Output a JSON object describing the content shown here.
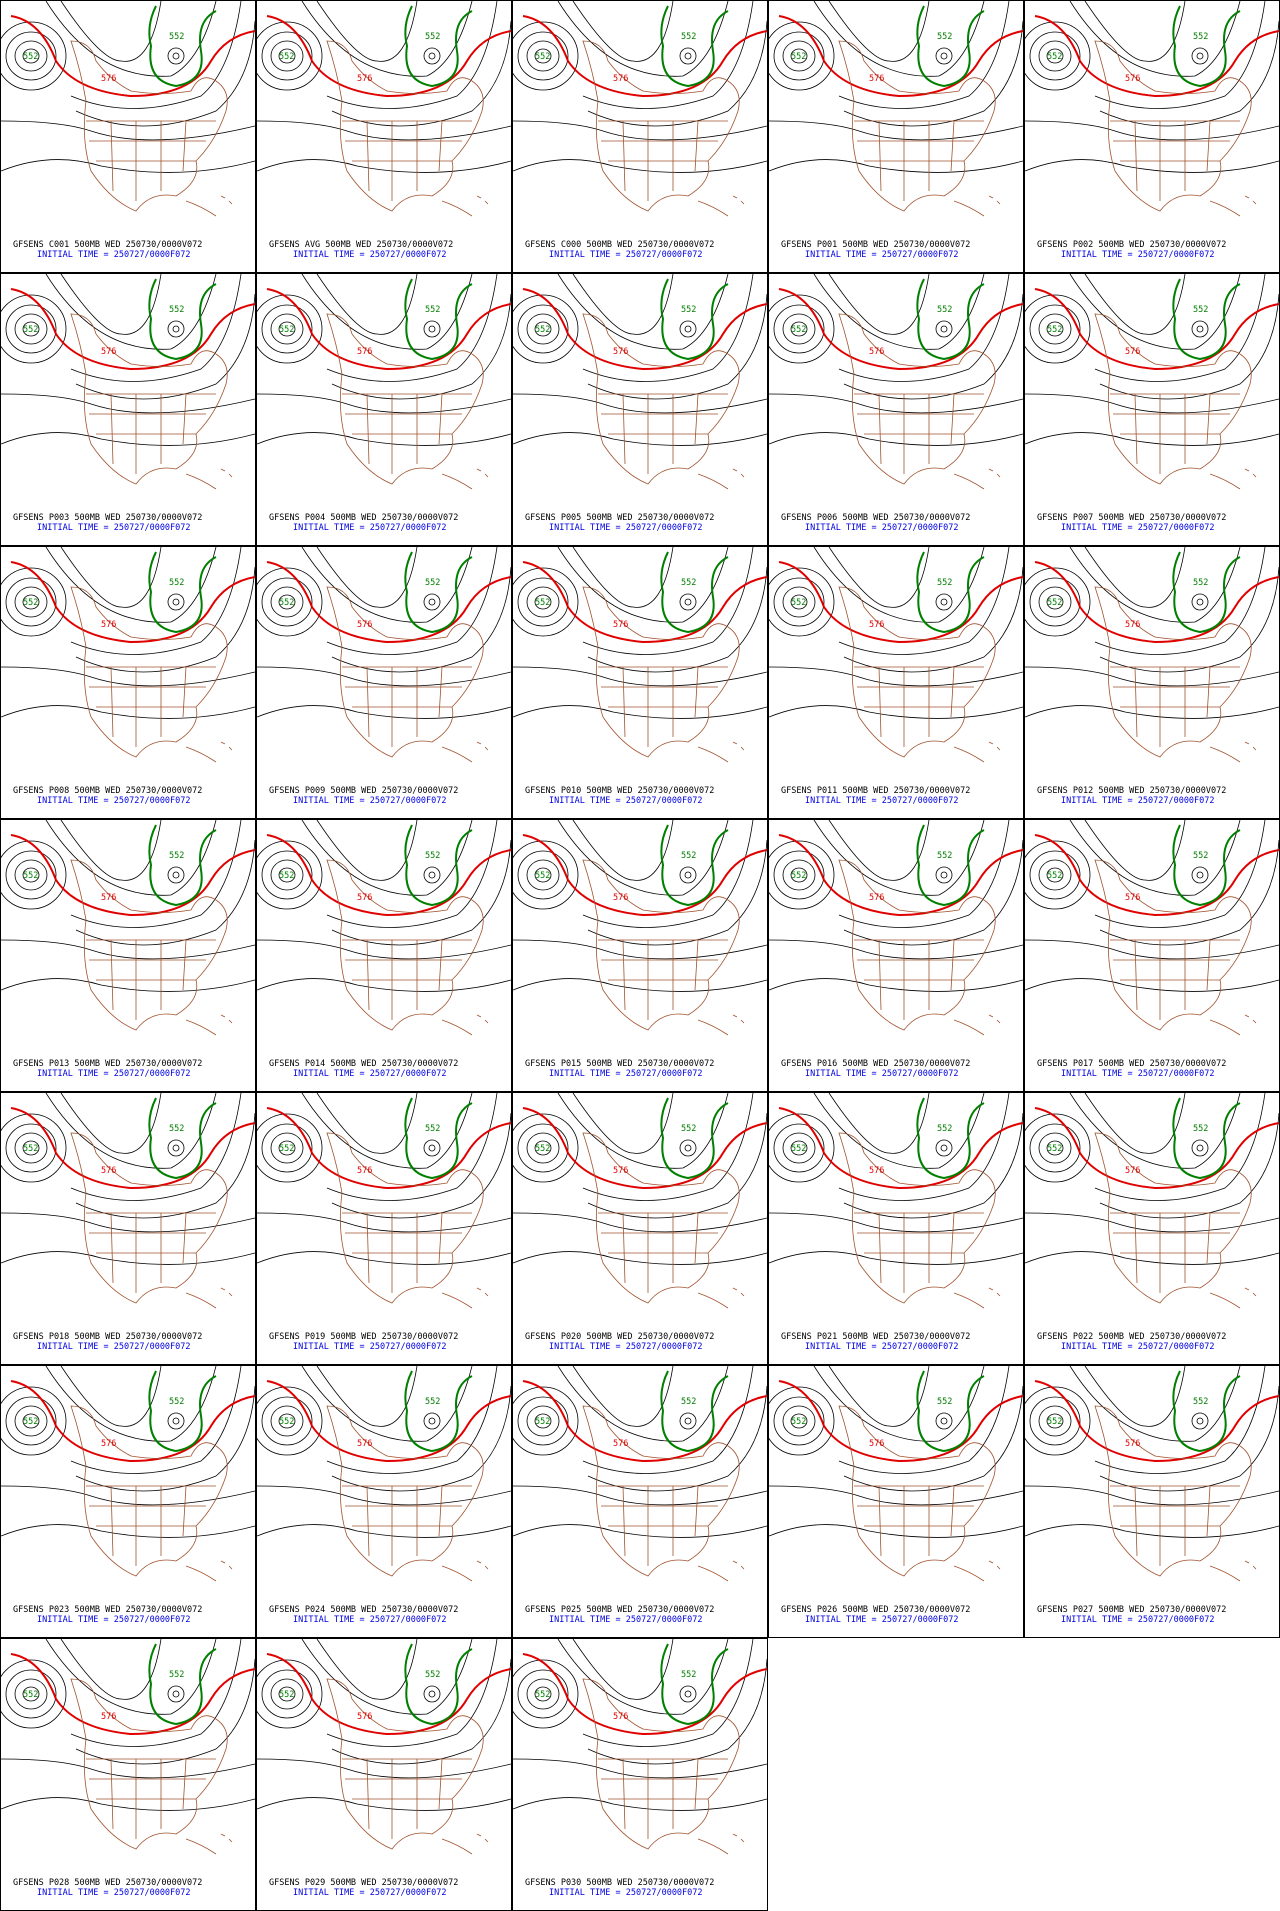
{
  "contour_labels": {
    "green": "552",
    "red": "576"
  },
  "panels": [
    {
      "title": "GFSENS C001 500MB WED 250730/0000V072",
      "subtitle": "INITIAL TIME = 250727/0000F072"
    },
    {
      "title": "GFSENS AVG 500MB WED 250730/0000V072",
      "subtitle": "INITIAL TIME = 250727/0000F072"
    },
    {
      "title": "GFSENS C000 500MB WED 250730/0000V072",
      "subtitle": "INITIAL TIME = 250727/0000F072"
    },
    {
      "title": "GFSENS P001 500MB WED 250730/0000V072",
      "subtitle": "INITIAL TIME = 250727/0000F072"
    },
    {
      "title": "GFSENS P002 500MB WED 250730/0000V072",
      "subtitle": "INITIAL TIME = 250727/0000F072"
    },
    {
      "title": "GFSENS P003 500MB WED 250730/0000V072",
      "subtitle": "INITIAL TIME = 250727/0000F072"
    },
    {
      "title": "GFSENS P004 500MB WED 250730/0000V072",
      "subtitle": "INITIAL TIME = 250727/0000F072"
    },
    {
      "title": "GFSENS P005 500MB WED 250730/0000V072",
      "subtitle": "INITIAL TIME = 250727/0000F072"
    },
    {
      "title": "GFSENS P006 500MB WED 250730/0000V072",
      "subtitle": "INITIAL TIME = 250727/0000F072"
    },
    {
      "title": "GFSENS P007 500MB WED 250730/0000V072",
      "subtitle": "INITIAL TIME = 250727/0000F072"
    },
    {
      "title": "GFSENS P008 500MB WED 250730/0000V072",
      "subtitle": "INITIAL TIME = 250727/0000F072"
    },
    {
      "title": "GFSENS P009 500MB WED 250730/0000V072",
      "subtitle": "INITIAL TIME = 250727/0000F072"
    },
    {
      "title": "GFSENS P010 500MB WED 250730/0000V072",
      "subtitle": "INITIAL TIME = 250727/0000F072"
    },
    {
      "title": "GFSENS P011 500MB WED 250730/0000V072",
      "subtitle": "INITIAL TIME = 250727/0000F072"
    },
    {
      "title": "GFSENS P012 500MB WED 250730/0000V072",
      "subtitle": "INITIAL TIME = 250727/0000F072"
    },
    {
      "title": "GFSENS P013 500MB WED 250730/0000V072",
      "subtitle": "INITIAL TIME = 250727/0000F072"
    },
    {
      "title": "GFSENS P014 500MB WED 250730/0000V072",
      "subtitle": "INITIAL TIME = 250727/0000F072"
    },
    {
      "title": "GFSENS P015 500MB WED 250730/0000V072",
      "subtitle": "INITIAL TIME = 250727/0000F072"
    },
    {
      "title": "GFSENS P016 500MB WED 250730/0000V072",
      "subtitle": "INITIAL TIME = 250727/0000F072"
    },
    {
      "title": "GFSENS P017 500MB WED 250730/0000V072",
      "subtitle": "INITIAL TIME = 250727/0000F072"
    },
    {
      "title": "GFSENS P018 500MB WED 250730/0000V072",
      "subtitle": "INITIAL TIME = 250727/0000F072"
    },
    {
      "title": "GFSENS P019 500MB WED 250730/0000V072",
      "subtitle": "INITIAL TIME = 250727/0000F072"
    },
    {
      "title": "GFSENS P020 500MB WED 250730/0000V072",
      "subtitle": "INITIAL TIME = 250727/0000F072"
    },
    {
      "title": "GFSENS P021 500MB WED 250730/0000V072",
      "subtitle": "INITIAL TIME = 250727/0000F072"
    },
    {
      "title": "GFSENS P022 500MB WED 250730/0000V072",
      "subtitle": "INITIAL TIME = 250727/0000F072"
    },
    {
      "title": "GFSENS P023 500MB WED 250730/0000V072",
      "subtitle": "INITIAL TIME = 250727/0000F072"
    },
    {
      "title": "GFSENS P024 500MB WED 250730/0000V072",
      "subtitle": "INITIAL TIME = 250727/0000F072"
    },
    {
      "title": "GFSENS P025 500MB WED 250730/0000V072",
      "subtitle": "INITIAL TIME = 250727/0000F072"
    },
    {
      "title": "GFSENS P026 500MB WED 250730/0000V072",
      "subtitle": "INITIAL TIME = 250727/0000F072"
    },
    {
      "title": "GFSENS P027 500MB WED 250730/0000V072",
      "subtitle": "INITIAL TIME = 250727/0000F072"
    },
    {
      "title": "GFSENS P028 500MB WED 250730/0000V072",
      "subtitle": "INITIAL TIME = 250727/0000F072"
    },
    {
      "title": "GFSENS P029 500MB WED 250730/0000V072",
      "subtitle": "INITIAL TIME = 250727/0000F072"
    },
    {
      "title": "GFSENS P030 500MB WED 250730/0000V072",
      "subtitle": "INITIAL TIME = 250727/0000F072"
    }
  ]
}
